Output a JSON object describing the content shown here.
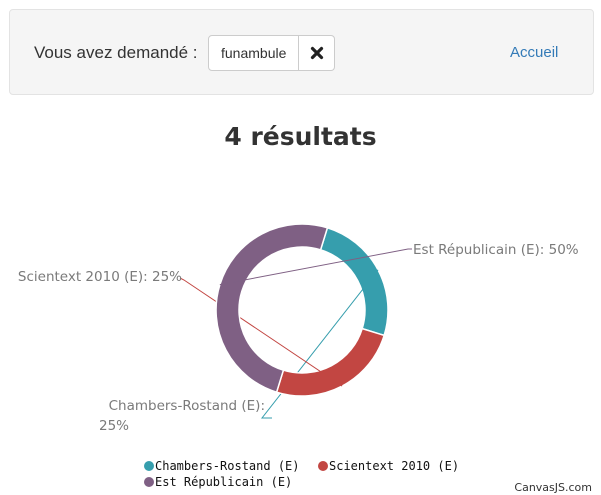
{
  "search": {
    "label": "Vous avez demandé :",
    "term": "funambule",
    "clear_icon": "close-icon",
    "home_link": "Accueil"
  },
  "results": {
    "title": "4 résultats"
  },
  "colors": {
    "Chambers-Rostand (E)": "#369ead",
    "Scientext 2010 (E)": "#c24642",
    "Est Républicain (E)": "#7f6084",
    "link": "#337ab7"
  },
  "chart_data": {
    "type": "pie",
    "style": "doughnut",
    "series": [
      {
        "name": "Chambers-Rostand (E)",
        "value": 25,
        "label": "Chambers-Rostand (E): 25%"
      },
      {
        "name": "Scientext 2010 (E)",
        "value": 25,
        "label": "Scientext 2010 (E): 25%"
      },
      {
        "name": "Est Républicain (E)",
        "value": 50,
        "label": "Est Républicain (E): 50%"
      }
    ],
    "legend": "bottom",
    "credit": "CanvasJS.com"
  }
}
